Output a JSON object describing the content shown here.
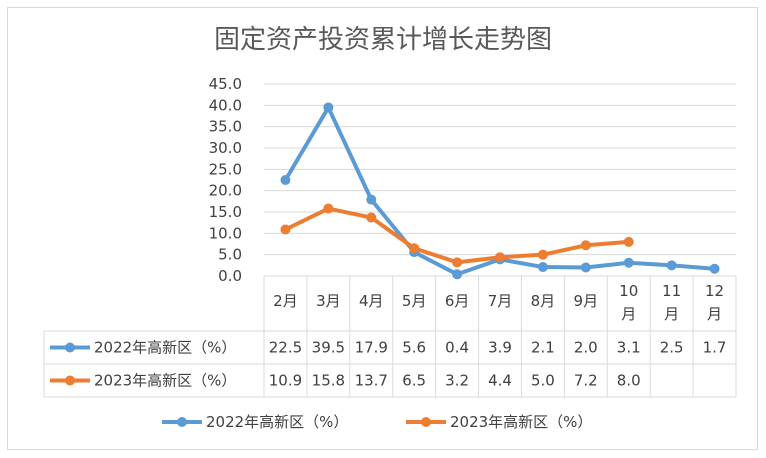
{
  "chart_data": {
    "type": "line",
    "title": "固定资产投资累计增长走势图",
    "categories": [
      "2月",
      "3月",
      "4月",
      "5月",
      "6月",
      "7月",
      "8月",
      "9月",
      "10月",
      "11月",
      "12月"
    ],
    "category_lines": [
      [
        "2月"
      ],
      [
        "3月"
      ],
      [
        "4月"
      ],
      [
        "5月"
      ],
      [
        "6月"
      ],
      [
        "7月"
      ],
      [
        "8月"
      ],
      [
        "9月"
      ],
      [
        "10",
        "月"
      ],
      [
        "11",
        "月"
      ],
      [
        "12",
        "月"
      ]
    ],
    "ylim": [
      0,
      45
    ],
    "yticks": [
      "0.0",
      "5.0",
      "10.0",
      "15.0",
      "20.0",
      "25.0",
      "30.0",
      "35.0",
      "40.0",
      "45.0"
    ],
    "grid": true,
    "legend_position": "bottom",
    "data_table": true,
    "series": [
      {
        "name": "2022年高新区（%）",
        "color": "#5B9BD5",
        "values": [
          22.5,
          39.5,
          17.9,
          5.6,
          0.4,
          3.9,
          2.1,
          2.0,
          3.1,
          2.5,
          1.7
        ],
        "labels": [
          "22.5",
          "39.5",
          "17.9",
          "5.6",
          "0.4",
          "3.9",
          "2.1",
          "2.0",
          "3.1",
          "2.5",
          "1.7"
        ]
      },
      {
        "name": "2023年高新区（%）",
        "color": "#ED7D31",
        "values": [
          10.9,
          15.8,
          13.7,
          6.5,
          3.2,
          4.4,
          5.0,
          7.2,
          8.0,
          null,
          null
        ],
        "labels": [
          "10.9",
          "15.8",
          "13.7",
          "6.5",
          "3.2",
          "4.4",
          "5.0",
          "7.2",
          "8.0",
          "",
          ""
        ]
      }
    ]
  }
}
